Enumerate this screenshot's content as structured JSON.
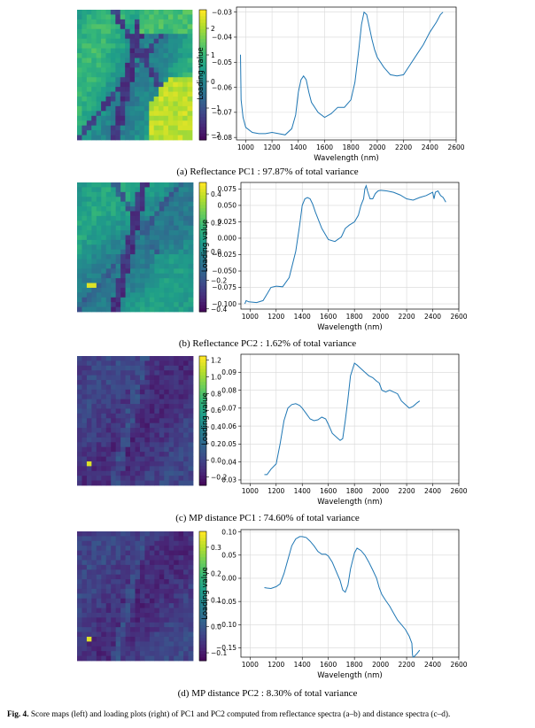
{
  "figure": {
    "label": "Fig. 4.",
    "caption": "Score maps (left) and loading plots (right) of PC1 and PC2 computed from reflectance spectra (a–b) and distance spectra (c–d)."
  },
  "panels": [
    {
      "caption": "(a) Reflectance PC1 : 97.87% of total variance",
      "colorbar": {
        "ticks": [
          "2",
          "1",
          "0",
          "−1",
          "−2"
        ],
        "range": [
          -2.2,
          2.7
        ]
      }
    },
    {
      "caption": "(b) Reflectance PC2 : 1.62% of total variance",
      "colorbar": {
        "ticks": [
          "0.4",
          "0.2",
          "0.0",
          "−0.2",
          "−0.4"
        ],
        "range": [
          -0.42,
          0.48
        ]
      }
    },
    {
      "caption": "(c) MP distance PC1 : 74.60% of total variance",
      "colorbar": {
        "ticks": [
          "1.2",
          "1.0",
          "0.8",
          "0.6",
          "0.4",
          "0.2",
          "0.0",
          "−0.2"
        ],
        "range": [
          -0.3,
          1.25
        ]
      }
    },
    {
      "caption": "(d) MP distance PC2 : 8.30% of total variance",
      "colorbar": {
        "ticks": [
          "0.3",
          "0.2",
          "0.1",
          "0.0",
          "−0.1"
        ],
        "range": [
          -0.13,
          0.36
        ]
      }
    }
  ],
  "chart_data": [
    {
      "type": "line",
      "xlabel": "Wavelength (nm)",
      "ylabel": "Loading value",
      "xlim": [
        930,
        2600
      ],
      "ylim": [
        -0.081,
        -0.028
      ],
      "xticks": [
        1000,
        1200,
        1400,
        1600,
        1800,
        2000,
        2200,
        2400,
        2600
      ],
      "yticks": [
        -0.03,
        -0.04,
        -0.05,
        -0.06,
        -0.07,
        -0.08
      ],
      "ytick_labels": [
        "−0.03",
        "−0.04",
        "−0.05",
        "−0.06",
        "−0.07",
        "−0.08"
      ],
      "grid": true,
      "color": "#1f77b4",
      "x": [
        960,
        965,
        980,
        1000,
        1050,
        1100,
        1150,
        1200,
        1250,
        1300,
        1350,
        1380,
        1400,
        1420,
        1440,
        1460,
        1480,
        1500,
        1550,
        1600,
        1650,
        1700,
        1750,
        1800,
        1830,
        1860,
        1880,
        1900,
        1920,
        1940,
        1960,
        1980,
        2000,
        2050,
        2100,
        2150,
        2200,
        2250,
        2300,
        2350,
        2400,
        2450,
        2480,
        2500
      ],
      "y": [
        -0.047,
        -0.065,
        -0.072,
        -0.076,
        -0.078,
        -0.0785,
        -0.0785,
        -0.078,
        -0.0785,
        -0.079,
        -0.0765,
        -0.071,
        -0.062,
        -0.057,
        -0.0555,
        -0.057,
        -0.062,
        -0.066,
        -0.07,
        -0.072,
        -0.0705,
        -0.068,
        -0.068,
        -0.065,
        -0.058,
        -0.045,
        -0.035,
        -0.03,
        -0.031,
        -0.036,
        -0.041,
        -0.045,
        -0.048,
        -0.052,
        -0.055,
        -0.0555,
        -0.055,
        -0.051,
        -0.047,
        -0.043,
        -0.038,
        -0.034,
        -0.031,
        -0.03
      ]
    },
    {
      "type": "line",
      "xlabel": "Wavelength (nm)",
      "ylabel": "Loading value",
      "xlim": [
        930,
        2600
      ],
      "ylim": [
        -0.108,
        0.085
      ],
      "xticks": [
        1000,
        1200,
        1400,
        1600,
        1800,
        2000,
        2200,
        2400,
        2600
      ],
      "yticks": [
        0.075,
        0.05,
        0.025,
        0.0,
        -0.025,
        -0.05,
        -0.075,
        -0.1
      ],
      "ytick_labels": [
        "0.075",
        "0.050",
        "0.025",
        "0.000",
        "−0.025",
        "−0.050",
        "−0.075",
        "−0.100"
      ],
      "grid": true,
      "color": "#1f77b4",
      "x": [
        960,
        970,
        990,
        1050,
        1100,
        1130,
        1160,
        1200,
        1250,
        1300,
        1350,
        1380,
        1400,
        1420,
        1440,
        1460,
        1480,
        1500,
        1550,
        1600,
        1650,
        1700,
        1730,
        1760,
        1800,
        1830,
        1850,
        1870,
        1880,
        1890,
        1900,
        1920,
        1940,
        1960,
        1980,
        2000,
        2050,
        2100,
        2150,
        2200,
        2250,
        2300,
        2350,
        2380,
        2400,
        2410,
        2420,
        2440,
        2460,
        2480,
        2500
      ],
      "y": [
        -0.1,
        -0.095,
        -0.097,
        -0.098,
        -0.095,
        -0.085,
        -0.075,
        -0.073,
        -0.074,
        -0.06,
        -0.02,
        0.02,
        0.05,
        0.06,
        0.062,
        0.06,
        0.052,
        0.04,
        0.015,
        -0.002,
        -0.005,
        0.002,
        0.015,
        0.02,
        0.025,
        0.035,
        0.05,
        0.06,
        0.075,
        0.08,
        0.072,
        0.06,
        0.06,
        0.068,
        0.072,
        0.073,
        0.072,
        0.07,
        0.066,
        0.06,
        0.058,
        0.062,
        0.065,
        0.068,
        0.07,
        0.06,
        0.07,
        0.072,
        0.065,
        0.062,
        0.055
      ]
    },
    {
      "type": "line",
      "xlabel": "Wavelength (nm)",
      "ylabel": "Loading value",
      "xlim": [
        930,
        2600
      ],
      "ylim": [
        0.028,
        0.1
      ],
      "xticks": [
        1000,
        1200,
        1400,
        1600,
        1800,
        2000,
        2200,
        2400,
        2600
      ],
      "yticks": [
        0.09,
        0.08,
        0.07,
        0.06,
        0.05,
        0.04,
        0.03
      ],
      "ytick_labels": [
        "0.09",
        "0.08",
        "0.07",
        "0.06",
        "0.05",
        "0.04",
        "0.03"
      ],
      "grid": true,
      "color": "#1f77b4",
      "x": [
        1110,
        1130,
        1160,
        1200,
        1230,
        1260,
        1290,
        1320,
        1350,
        1380,
        1400,
        1430,
        1460,
        1490,
        1520,
        1550,
        1580,
        1600,
        1630,
        1660,
        1690,
        1710,
        1730,
        1750,
        1770,
        1800,
        1820,
        1850,
        1880,
        1910,
        1940,
        1970,
        1990,
        2010,
        2040,
        2070,
        2100,
        2130,
        2160,
        2190,
        2220,
        2250,
        2280,
        2300
      ],
      "y": [
        0.033,
        0.033,
        0.036,
        0.039,
        0.05,
        0.063,
        0.07,
        0.072,
        0.0725,
        0.0715,
        0.07,
        0.067,
        0.064,
        0.063,
        0.0635,
        0.065,
        0.064,
        0.061,
        0.056,
        0.054,
        0.052,
        0.053,
        0.063,
        0.075,
        0.088,
        0.095,
        0.094,
        0.092,
        0.09,
        0.088,
        0.087,
        0.085,
        0.084,
        0.08,
        0.079,
        0.08,
        0.079,
        0.078,
        0.074,
        0.072,
        0.07,
        0.071,
        0.073,
        0.074
      ]
    },
    {
      "type": "line",
      "xlabel": "Wavelength (nm)",
      "ylabel": "Loading value",
      "xlim": [
        930,
        2600
      ],
      "ylim": [
        -0.17,
        0.105
      ],
      "xticks": [
        1000,
        1200,
        1400,
        1600,
        1800,
        2000,
        2200,
        2400,
        2600
      ],
      "yticks": [
        0.1,
        0.05,
        0.0,
        -0.05,
        -0.1,
        -0.15
      ],
      "ytick_labels": [
        "0.10",
        "0.05",
        "0.00",
        "−0.05",
        "−0.10",
        "−0.15"
      ],
      "grid": true,
      "color": "#1f77b4",
      "x": [
        1110,
        1130,
        1160,
        1200,
        1230,
        1260,
        1290,
        1320,
        1350,
        1380,
        1400,
        1430,
        1460,
        1490,
        1520,
        1550,
        1580,
        1600,
        1630,
        1660,
        1690,
        1710,
        1730,
        1750,
        1770,
        1800,
        1820,
        1850,
        1880,
        1910,
        1940,
        1970,
        1990,
        2010,
        2040,
        2070,
        2100,
        2130,
        2160,
        2190,
        2220,
        2240,
        2245,
        2250,
        2260,
        2280,
        2300
      ],
      "y": [
        -0.02,
        -0.021,
        -0.022,
        -0.018,
        -0.012,
        0.01,
        0.04,
        0.07,
        0.085,
        0.09,
        0.09,
        0.088,
        0.08,
        0.07,
        0.058,
        0.052,
        0.052,
        0.048,
        0.035,
        0.015,
        -0.005,
        -0.025,
        -0.03,
        -0.015,
        0.02,
        0.055,
        0.065,
        0.06,
        0.05,
        0.035,
        0.018,
        0.0,
        -0.02,
        -0.035,
        -0.048,
        -0.06,
        -0.075,
        -0.09,
        -0.1,
        -0.11,
        -0.125,
        -0.14,
        -0.165,
        -0.17,
        -0.168,
        -0.162,
        -0.155
      ]
    }
  ]
}
